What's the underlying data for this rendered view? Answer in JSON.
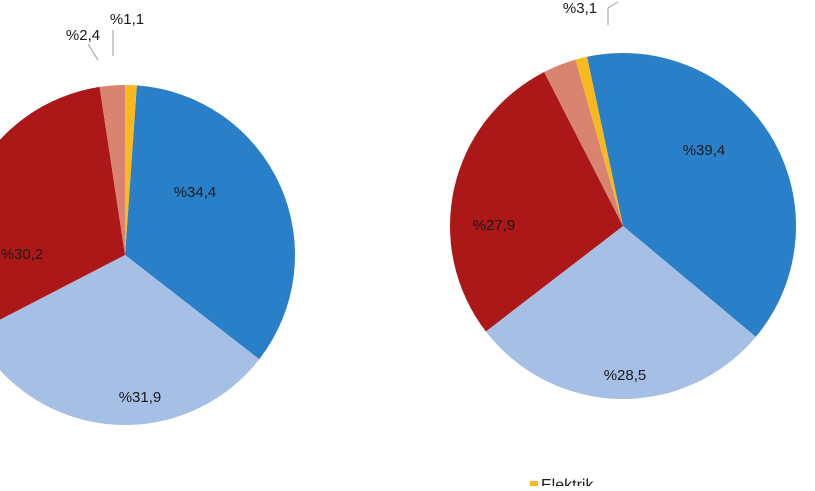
{
  "colors": {
    "blue": "#2a80c8",
    "light_blue": "#a6bfe4",
    "red": "#ac1717",
    "salmon": "#d88470",
    "yellow": "#f8b81e",
    "leader": "#9a9a9a"
  },
  "chart_data": [
    {
      "type": "pie",
      "slices": [
        {
          "value": 34.4,
          "label": "%34,4",
          "color": "#2a80c8"
        },
        {
          "value": 31.9,
          "label": "%31,9",
          "color": "#a6bfe4"
        },
        {
          "value": 30.2,
          "label": "%30,2",
          "color": "#ac1717"
        },
        {
          "value": 2.4,
          "label": "%2,4",
          "color": "#d88470"
        },
        {
          "value": 1.1,
          "label": "%1,1",
          "color": "#f8b81e"
        }
      ]
    },
    {
      "type": "pie",
      "slices": [
        {
          "value": 39.4,
          "label": "%39,4",
          "color": "#2a80c8"
        },
        {
          "value": 28.5,
          "label": "%28,5",
          "color": "#a6bfe4"
        },
        {
          "value": 27.9,
          "label": "%27,9",
          "color": "#ac1717"
        },
        {
          "value": 3.1,
          "label": "%3,1",
          "color": "#d88470"
        },
        {
          "value": 1.1,
          "label": "",
          "color": "#f8b81e"
        }
      ]
    }
  ],
  "legend": [
    {
      "label": "Elektrik",
      "color": "#f8b81e"
    }
  ]
}
